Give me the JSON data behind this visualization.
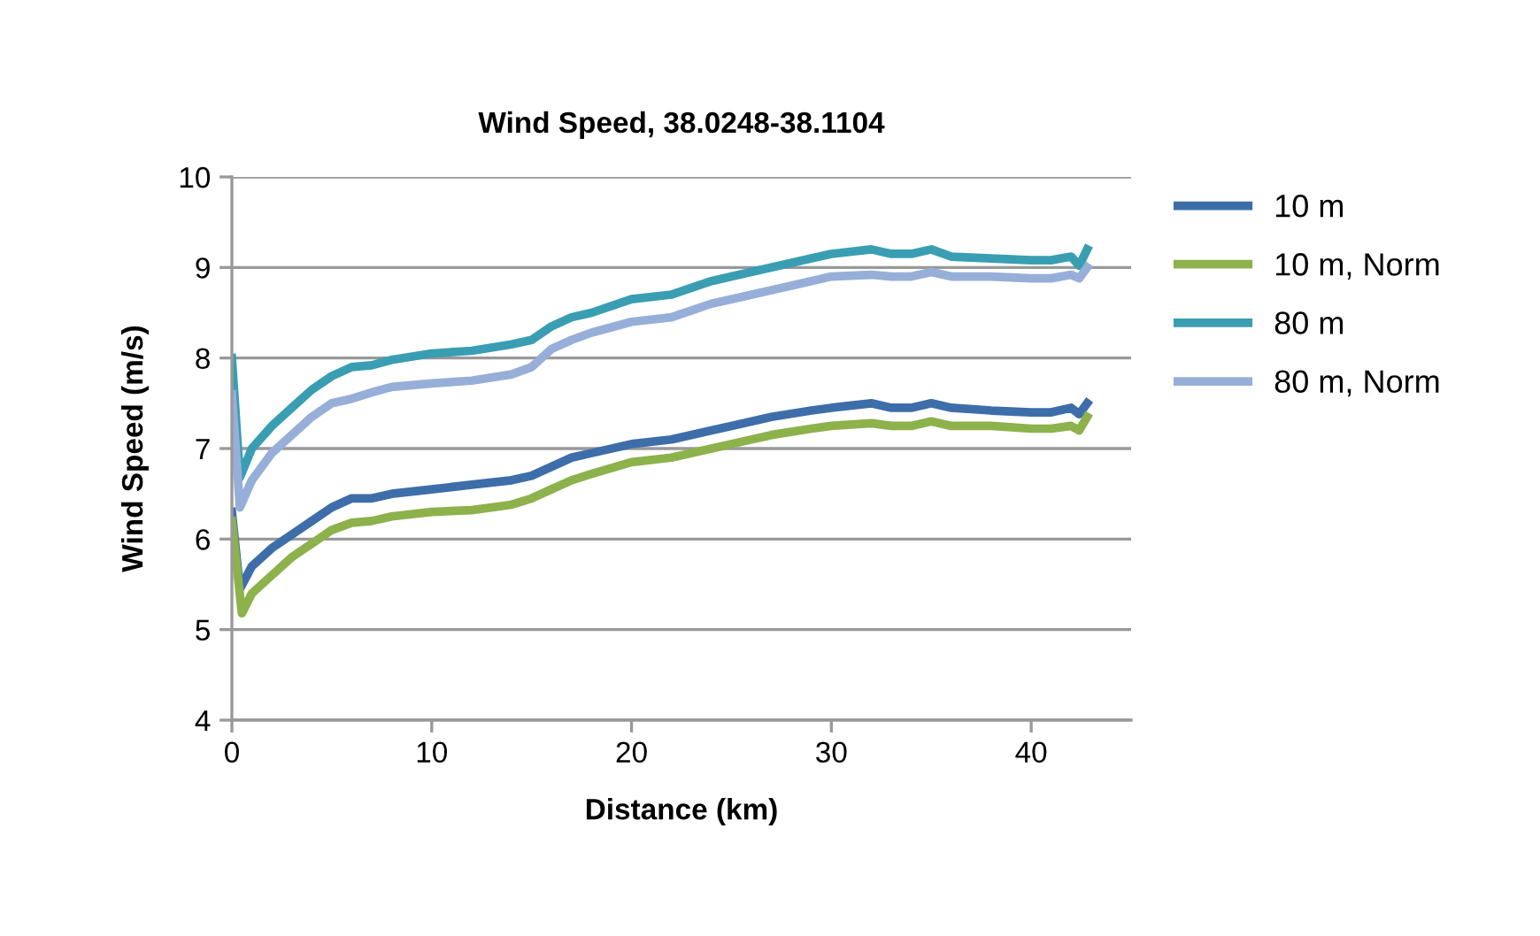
{
  "chart_data": {
    "type": "line",
    "title": "Wind Speed, 38.0248-38.1104",
    "xlabel": "Distance (km)",
    "ylabel": "Wind Speed (m/s)",
    "xlim": [
      0,
      45
    ],
    "xticks": [
      0,
      10,
      20,
      30,
      40
    ],
    "ylim": [
      4,
      10
    ],
    "yticks": [
      4,
      5,
      6,
      7,
      8,
      9,
      10
    ],
    "grid": "y",
    "legend": "right",
    "marker": "none",
    "line_style": "solid",
    "series": [
      {
        "name": "10 m",
        "color": "#3d6eaa",
        "x": [
          0,
          0.4,
          1,
          2,
          3,
          4,
          5,
          6,
          7,
          8,
          10,
          12,
          14,
          15,
          16,
          17,
          18,
          20,
          22,
          24,
          25,
          27,
          29,
          30,
          32,
          33,
          34,
          35,
          36,
          38,
          40,
          41,
          42,
          42.4,
          42.8
        ],
        "values": [
          6.3,
          5.45,
          5.7,
          5.9,
          6.05,
          6.2,
          6.35,
          6.45,
          6.45,
          6.5,
          6.55,
          6.6,
          6.65,
          6.7,
          6.8,
          6.9,
          6.95,
          7.05,
          7.1,
          7.2,
          7.25,
          7.35,
          7.42,
          7.45,
          7.5,
          7.45,
          7.45,
          7.5,
          7.45,
          7.42,
          7.4,
          7.4,
          7.45,
          7.38,
          7.5
        ]
      },
      {
        "name": "10 m, Norm",
        "color": "#8db24b",
        "x": [
          0,
          0.5,
          1,
          2,
          3,
          4,
          5,
          6,
          7,
          8,
          10,
          12,
          14,
          15,
          16,
          17,
          18,
          20,
          22,
          24,
          25,
          27,
          29,
          30,
          32,
          33,
          34,
          35,
          36,
          38,
          40,
          41,
          42,
          42.4,
          42.8
        ],
        "values": [
          6.2,
          5.18,
          5.4,
          5.6,
          5.8,
          5.95,
          6.1,
          6.18,
          6.2,
          6.25,
          6.3,
          6.32,
          6.38,
          6.45,
          6.55,
          6.65,
          6.72,
          6.85,
          6.9,
          7.0,
          7.05,
          7.15,
          7.22,
          7.25,
          7.28,
          7.25,
          7.25,
          7.3,
          7.25,
          7.25,
          7.22,
          7.22,
          7.25,
          7.2,
          7.35
        ]
      },
      {
        "name": "80 m",
        "color": "#3a9eb3",
        "x": [
          0,
          0.4,
          1,
          2,
          3,
          4,
          5,
          6,
          7,
          8,
          10,
          12,
          14,
          15,
          16,
          17,
          18,
          20,
          22,
          24,
          25,
          27,
          29,
          30,
          32,
          33,
          34,
          35,
          36,
          38,
          40,
          41,
          42,
          42.4,
          42.8
        ],
        "values": [
          8.0,
          6.68,
          7.0,
          7.25,
          7.45,
          7.65,
          7.8,
          7.9,
          7.92,
          7.98,
          8.05,
          8.08,
          8.15,
          8.2,
          8.35,
          8.45,
          8.5,
          8.65,
          8.7,
          8.85,
          8.9,
          9.0,
          9.1,
          9.15,
          9.2,
          9.15,
          9.15,
          9.2,
          9.12,
          9.1,
          9.08,
          9.08,
          9.12,
          9.02,
          9.2
        ]
      },
      {
        "name": "80 m, Norm",
        "color": "#97afd8",
        "x": [
          0,
          0.4,
          1,
          2,
          3,
          4,
          5,
          6,
          7,
          8,
          10,
          12,
          14,
          15,
          16,
          17,
          18,
          20,
          22,
          24,
          25,
          27,
          29,
          30,
          32,
          33,
          34,
          35,
          36,
          38,
          40,
          41,
          42,
          42.4,
          42.8
        ],
        "values": [
          7.6,
          6.35,
          6.65,
          6.95,
          7.15,
          7.35,
          7.5,
          7.55,
          7.62,
          7.68,
          7.72,
          7.75,
          7.82,
          7.9,
          8.1,
          8.2,
          8.28,
          8.4,
          8.45,
          8.6,
          8.65,
          8.75,
          8.85,
          8.9,
          8.92,
          8.9,
          8.9,
          8.95,
          8.9,
          8.9,
          8.88,
          8.88,
          8.92,
          8.88,
          9.0
        ]
      }
    ]
  }
}
